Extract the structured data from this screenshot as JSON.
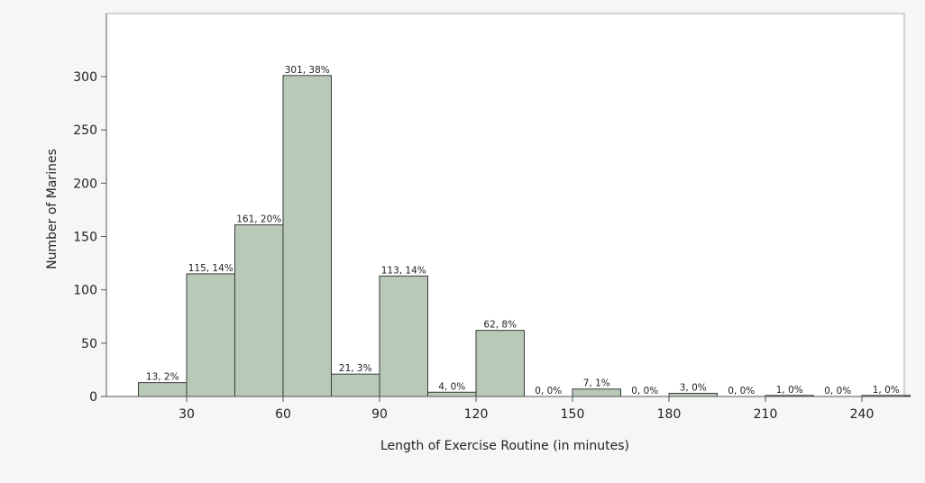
{
  "chart_data": {
    "type": "bar",
    "title": "",
    "xlabel": "Length of Exercise Routine (in minutes)",
    "ylabel": "Number of Marines",
    "bin_width": 15,
    "x_ticks": [
      "30",
      "60",
      "90",
      "120",
      "150",
      "180",
      "210",
      "240"
    ],
    "y_ticks": [
      "0",
      "50",
      "100",
      "150",
      "200",
      "250",
      "300"
    ],
    "ylim": [
      0,
      350
    ],
    "bins": [
      {
        "start": 15,
        "end": 30,
        "value": 13,
        "label": "13, 2%"
      },
      {
        "start": 30,
        "end": 45,
        "value": 115,
        "label": "115, 14%"
      },
      {
        "start": 45,
        "end": 60,
        "value": 161,
        "label": "161, 20%"
      },
      {
        "start": 60,
        "end": 75,
        "value": 301,
        "label": "301, 38%"
      },
      {
        "start": 75,
        "end": 90,
        "value": 21,
        "label": "21, 3%"
      },
      {
        "start": 90,
        "end": 105,
        "value": 113,
        "label": "113, 14%"
      },
      {
        "start": 105,
        "end": 120,
        "value": 4,
        "label": "4, 0%"
      },
      {
        "start": 120,
        "end": 135,
        "value": 62,
        "label": "62, 8%"
      },
      {
        "start": 135,
        "end": 150,
        "value": 0,
        "label": "0, 0%"
      },
      {
        "start": 150,
        "end": 165,
        "value": 7,
        "label": "7, 1%"
      },
      {
        "start": 165,
        "end": 180,
        "value": 0,
        "label": "0, 0%"
      },
      {
        "start": 180,
        "end": 195,
        "value": 3,
        "label": "3, 0%"
      },
      {
        "start": 195,
        "end": 210,
        "value": 0,
        "label": "0, 0%"
      },
      {
        "start": 210,
        "end": 225,
        "value": 1,
        "label": "1, 0%"
      },
      {
        "start": 225,
        "end": 240,
        "value": 0,
        "label": "0, 0%"
      },
      {
        "start": 240,
        "end": 255,
        "value": 1,
        "label": "1, 0%"
      }
    ],
    "grid": false,
    "colors": {
      "bar_fill": "#b8c9b8",
      "bar_stroke": "#3a3a3a",
      "plot_background": "#ffffff",
      "frame": "#a8a8a8"
    }
  }
}
